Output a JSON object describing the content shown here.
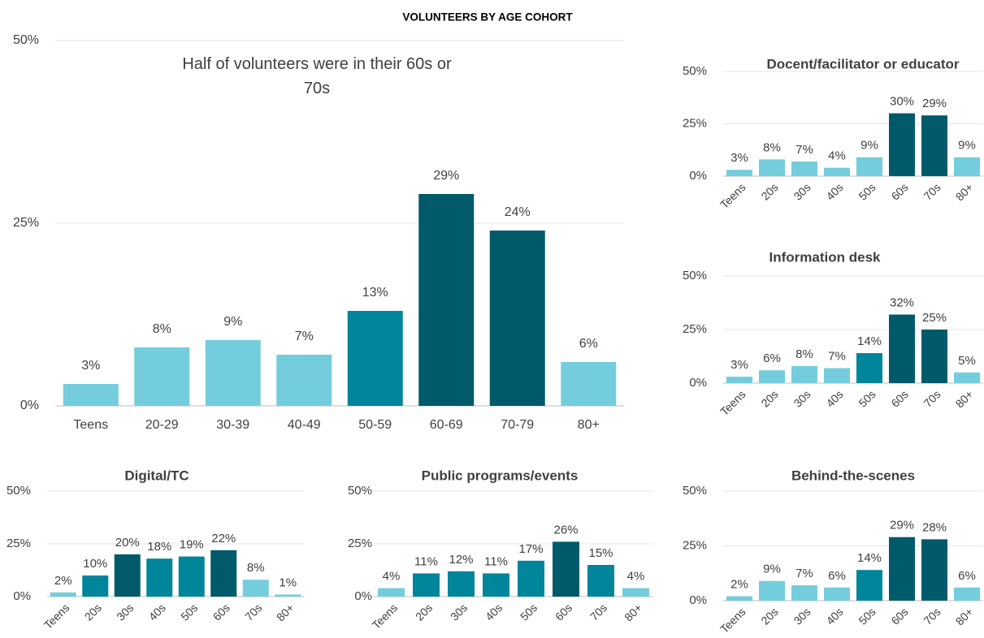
{
  "title": "VOLUNTEERS BY AGE COHORT",
  "chart_data": [
    {
      "type": "bar",
      "annotation": "Half of volunteers were in their 60s or 70s",
      "categories": [
        "Teens",
        "20-29",
        "30-39",
        "40-49",
        "50-59",
        "60-69",
        "70-79",
        "80+"
      ],
      "values": [
        3,
        8,
        9,
        7,
        13,
        29,
        24,
        6
      ],
      "value_labels": [
        "3%",
        "8%",
        "9%",
        "7%",
        "13%",
        "29%",
        "24%",
        "6%"
      ],
      "colors": [
        "#74cddc",
        "#74cddc",
        "#74cddc",
        "#74cddc",
        "#00859b",
        "#005a6a",
        "#005a6a",
        "#74cddc"
      ],
      "ylim": [
        0,
        50
      ],
      "yticks": [
        {
          "value": 0,
          "label": "0%"
        },
        {
          "value": 25,
          "label": "25%"
        },
        {
          "value": 50,
          "label": "50%"
        }
      ]
    },
    {
      "type": "bar",
      "title": "Docent/facilitator or educator",
      "categories": [
        "Teens",
        "20s",
        "30s",
        "40s",
        "50s",
        "60s",
        "70s",
        "80+"
      ],
      "values": [
        3,
        8,
        7,
        4,
        9,
        30,
        29,
        9
      ],
      "value_labels": [
        "3%",
        "8%",
        "7%",
        "4%",
        "9%",
        "30%",
        "29%",
        "9%"
      ],
      "colors": [
        "#74cddc",
        "#74cddc",
        "#74cddc",
        "#74cddc",
        "#74cddc",
        "#005a6a",
        "#005a6a",
        "#74cddc"
      ],
      "ylim": [
        0,
        50
      ],
      "yticks": [
        {
          "value": 0,
          "label": "0%"
        },
        {
          "value": 25,
          "label": "25%"
        },
        {
          "value": 50,
          "label": "50%"
        }
      ]
    },
    {
      "type": "bar",
      "title": "Information desk",
      "categories": [
        "Teens",
        "20s",
        "30s",
        "40s",
        "50s",
        "60s",
        "70s",
        "80+"
      ],
      "values": [
        3,
        6,
        8,
        7,
        14,
        32,
        25,
        5
      ],
      "value_labels": [
        "3%",
        "6%",
        "8%",
        "7%",
        "14%",
        "32%",
        "25%",
        "5%"
      ],
      "colors": [
        "#74cddc",
        "#74cddc",
        "#74cddc",
        "#74cddc",
        "#00859b",
        "#005a6a",
        "#005a6a",
        "#74cddc"
      ],
      "ylim": [
        0,
        50
      ],
      "yticks": [
        {
          "value": 0,
          "label": "0%"
        },
        {
          "value": 25,
          "label": "25%"
        },
        {
          "value": 50,
          "label": "50%"
        }
      ]
    },
    {
      "type": "bar",
      "title": "Digital/TC",
      "categories": [
        "Teens",
        "20s",
        "30s",
        "40s",
        "50s",
        "60s",
        "70s",
        "80+"
      ],
      "values": [
        2,
        10,
        20,
        18,
        19,
        22,
        8,
        1
      ],
      "value_labels": [
        "2%",
        "10%",
        "20%",
        "18%",
        "19%",
        "22%",
        "8%",
        "1%"
      ],
      "colors": [
        "#74cddc",
        "#00859b",
        "#005a6a",
        "#00859b",
        "#00859b",
        "#005a6a",
        "#74cddc",
        "#74cddc"
      ],
      "ylim": [
        0,
        50
      ],
      "yticks": [
        {
          "value": 0,
          "label": "0%"
        },
        {
          "value": 25,
          "label": "25%"
        },
        {
          "value": 50,
          "label": "50%"
        }
      ]
    },
    {
      "type": "bar",
      "title": "Public programs/events",
      "categories": [
        "Teens",
        "20s",
        "30s",
        "40s",
        "50s",
        "60s",
        "70s",
        "80+"
      ],
      "values": [
        4,
        11,
        12,
        11,
        17,
        26,
        15,
        4
      ],
      "value_labels": [
        "4%",
        "11%",
        "12%",
        "11%",
        "17%",
        "26%",
        "15%",
        "4%"
      ],
      "colors": [
        "#74cddc",
        "#00859b",
        "#00859b",
        "#00859b",
        "#00859b",
        "#005a6a",
        "#00859b",
        "#74cddc"
      ],
      "ylim": [
        0,
        50
      ],
      "yticks": [
        {
          "value": 0,
          "label": "0%"
        },
        {
          "value": 25,
          "label": "25%"
        },
        {
          "value": 50,
          "label": "50%"
        }
      ]
    },
    {
      "type": "bar",
      "title": "Behind-the-scenes",
      "categories": [
        "Teens",
        "20s",
        "30s",
        "40s",
        "50s",
        "60s",
        "70s",
        "80+"
      ],
      "values": [
        2,
        9,
        7,
        6,
        14,
        29,
        28,
        6
      ],
      "value_labels": [
        "2%",
        "9%",
        "7%",
        "6%",
        "14%",
        "29%",
        "28%",
        "6%"
      ],
      "colors": [
        "#74cddc",
        "#74cddc",
        "#74cddc",
        "#74cddc",
        "#00859b",
        "#005a6a",
        "#005a6a",
        "#74cddc"
      ],
      "ylim": [
        0,
        50
      ],
      "yticks": [
        {
          "value": 0,
          "label": "0%"
        },
        {
          "value": 25,
          "label": "25%"
        },
        {
          "value": 50,
          "label": "50%"
        }
      ]
    }
  ]
}
